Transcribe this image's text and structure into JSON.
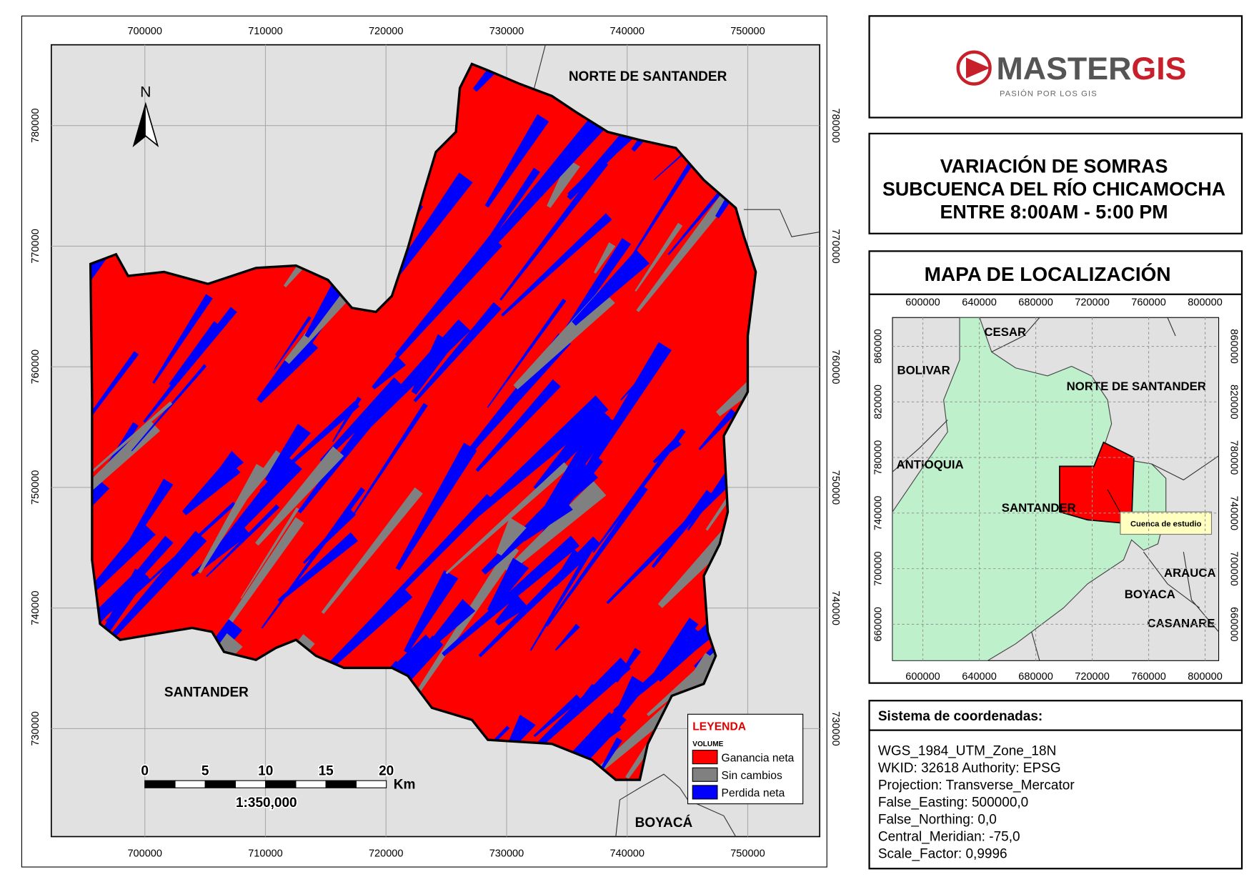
{
  "main_map": {
    "x_ticks": [
      700000,
      710000,
      720000,
      730000,
      740000,
      750000
    ],
    "y_ticks": [
      780000,
      770000,
      760000,
      750000,
      740000,
      730000
    ],
    "north": "N",
    "labels": [
      "NORTE DE SANTANDER",
      "SANTANDER",
      "BOYACÁ"
    ],
    "scale_bar": {
      "ticks": [
        0,
        5,
        10,
        15,
        20
      ],
      "unit": "Km",
      "ratio": "1:350,000"
    },
    "legend": {
      "title": "LEYENDA",
      "field": "VOLUME",
      "items": [
        {
          "label": "Ganancia neta",
          "color": "#ff0000"
        },
        {
          "label": "Sin cambios",
          "color": "#808080"
        },
        {
          "label": "Perdida neta",
          "color": "#0000ff"
        }
      ]
    }
  },
  "logo": {
    "brand_1": "MASTER",
    "brand_2": "GIS",
    "tagline": "PASIÓN POR LOS GIS"
  },
  "title": {
    "lines": [
      "VARIACIÓN DE SOMRAS",
      "SUBCUENCA DEL RÍO CHICAMOCHA",
      "ENTRE 8:00AM - 5:00 PM"
    ]
  },
  "location_map": {
    "heading": "MAPA DE LOCALIZACIÓN",
    "x_ticks": [
      600000,
      640000,
      680000,
      720000,
      760000,
      800000
    ],
    "y_ticks": [
      860000,
      820000,
      780000,
      740000,
      700000,
      660000
    ],
    "labels": [
      "CESAR",
      "BOLIVAR",
      "NORTE DE SANTANDER",
      "ANTIOQUIA",
      "SANTANDER",
      "ARAUCA",
      "BOYACA",
      "CASANARE"
    ],
    "callout": "Cuenca de estudio"
  },
  "coordinate_system": {
    "heading": "Sistema de coordenadas:",
    "lines": [
      "WGS_1984_UTM_Zone_18N",
      "WKID: 32618 Authority: EPSG",
      "Projection: Transverse_Mercator",
      "False_Easting: 500000,0",
      "False_Northing: 0,0",
      "Central_Meridian: -75,0",
      "Scale_Factor: 0,9996"
    ]
  }
}
